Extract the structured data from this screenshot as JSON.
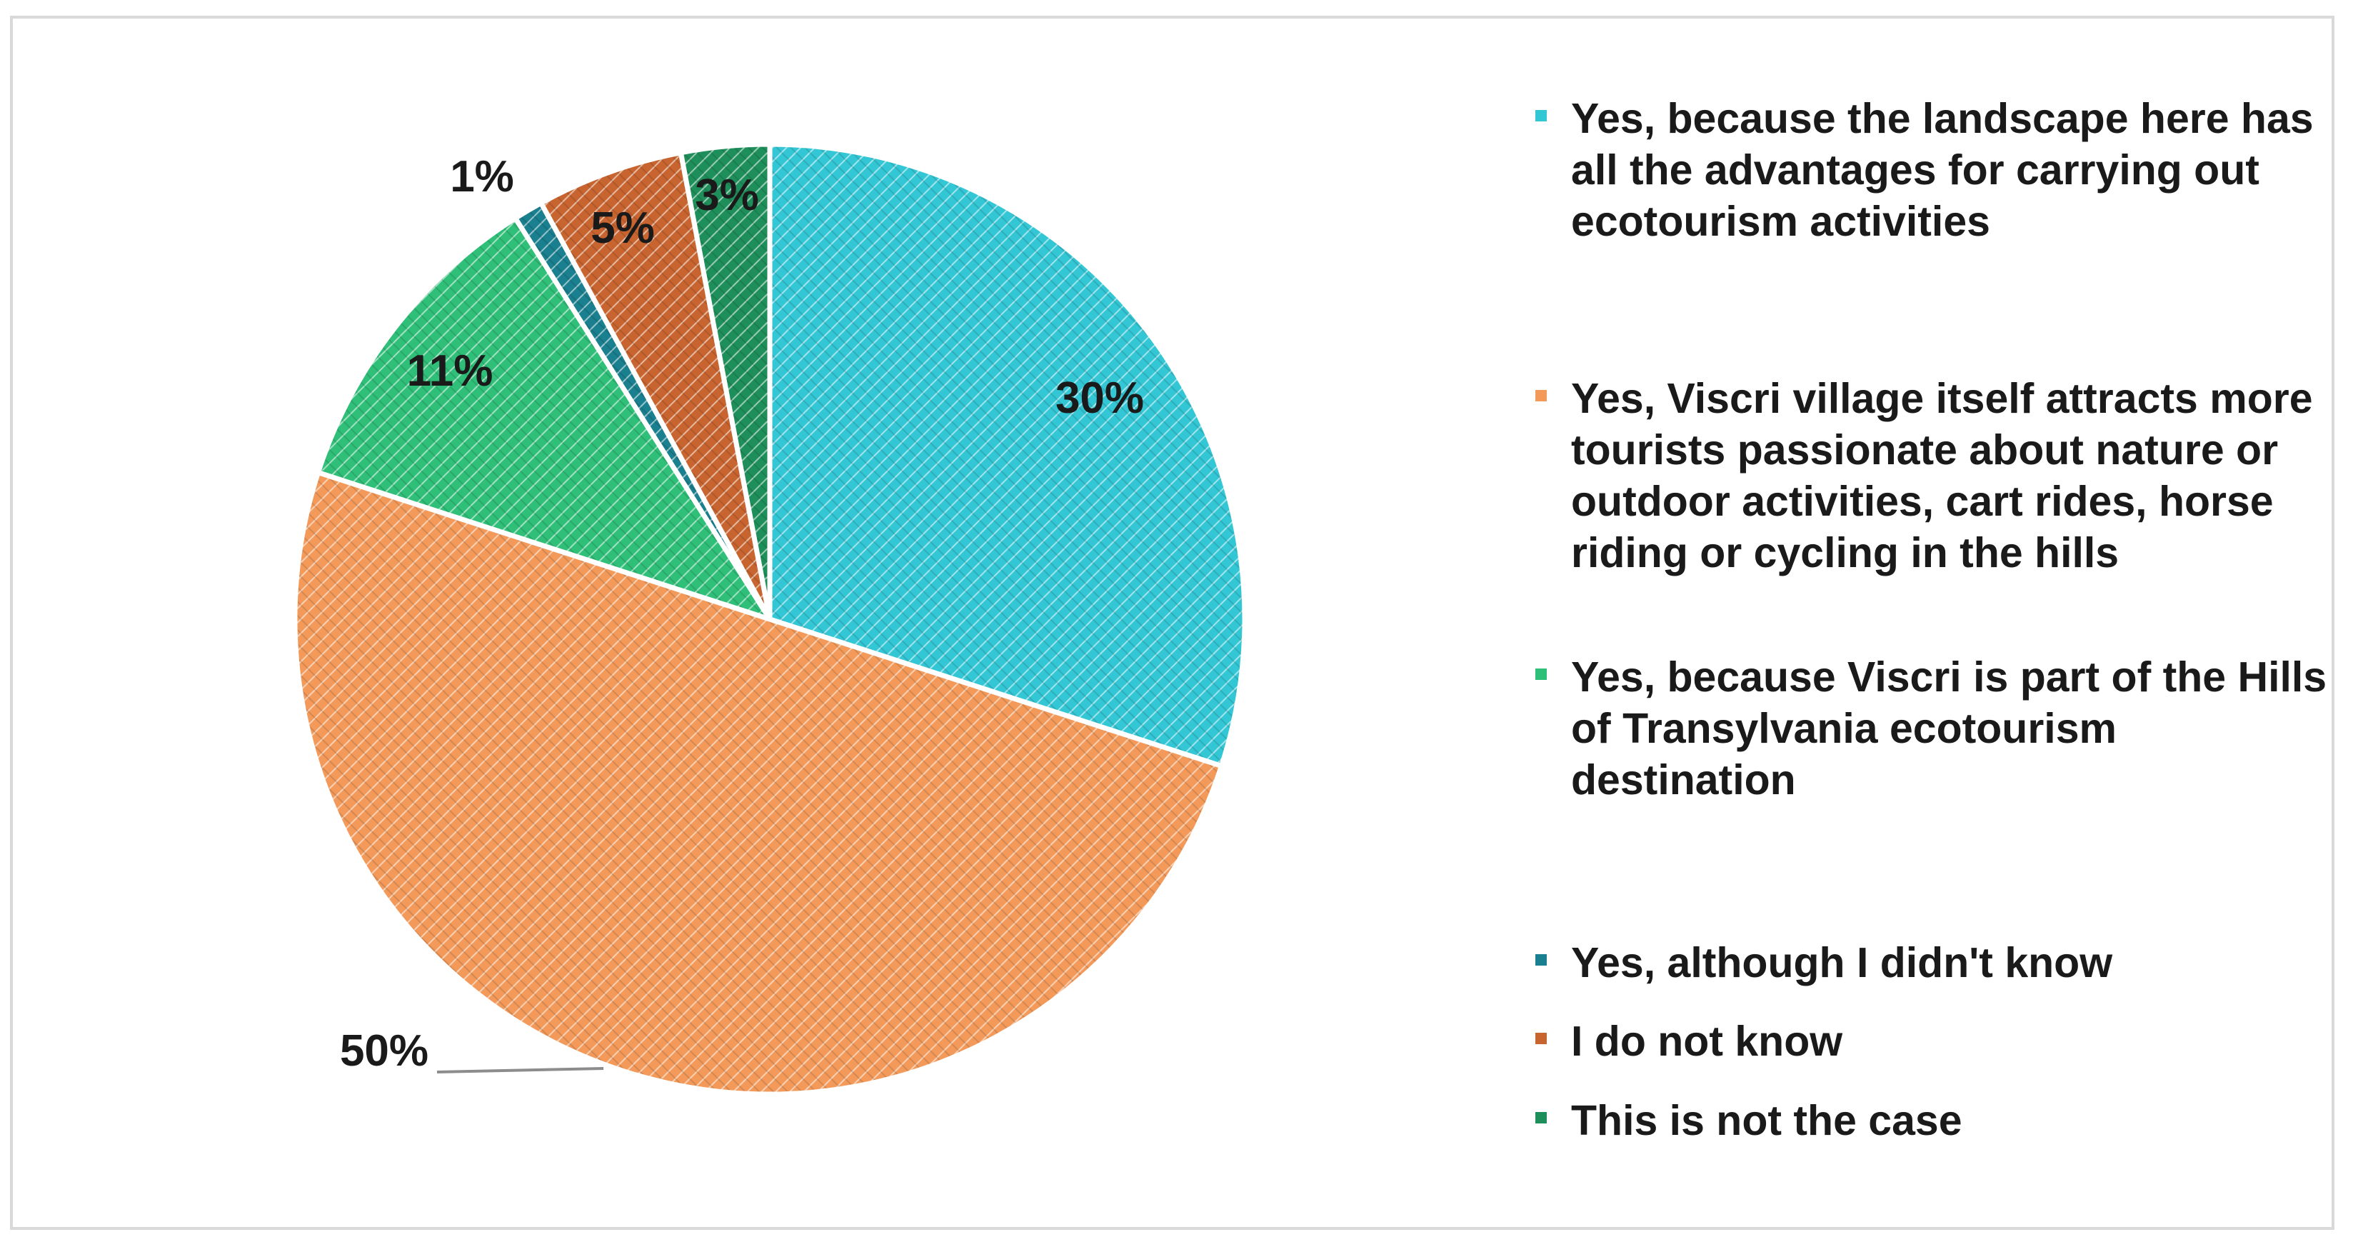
{
  "chart_data": {
    "type": "pie",
    "start_angle_deg": 0,
    "direction": "clockwise",
    "slices": [
      {
        "name": "Yes,  because the landscape here has all the advantages for carrying out ecotourism activities",
        "value": 30,
        "label": "30%",
        "color": "#33c6d4"
      },
      {
        "name": "Yes,  Viscri village itself attracts more tourists passionate about nature or outdoor activities, cart rides, horse riding or cycling in the hills",
        "value": 50,
        "label": "50%",
        "color": "#f39a5a"
      },
      {
        "name": "Yes, because Viscri is part of the Hills of Transylvania ecotourism destination",
        "value": 11,
        "label": "11%",
        "color": "#2fbf78"
      },
      {
        "name": "Yes, although I didn't know",
        "value": 1,
        "label": "1%",
        "color": "#1a7f8e"
      },
      {
        "name": "I do not know",
        "value": 5,
        "label": "5%",
        "color": "#c8642f"
      },
      {
        "name": "This is not the case",
        "value": 3,
        "label": "3%",
        "color": "#1e8f5a"
      }
    ],
    "legend_position": "right"
  }
}
